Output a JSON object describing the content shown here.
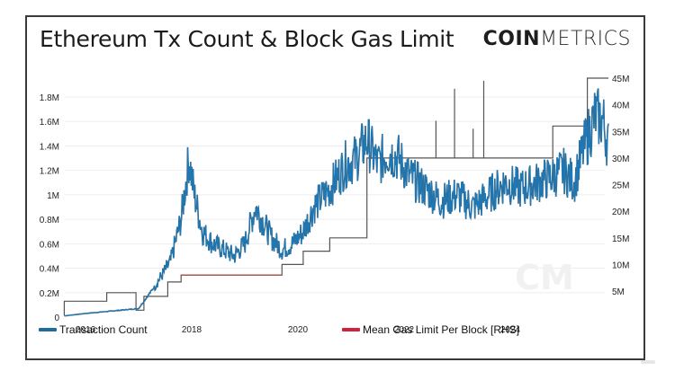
{
  "header": {
    "title": "Ethereum Tx Count & Block Gas Limit",
    "brand_bold": "COIN",
    "brand_light": "METRICS"
  },
  "legend": {
    "items": [
      {
        "label": "Transaction Count",
        "color": "#1f6e99"
      },
      {
        "label": "Mean Gas Limit Per Block [RHS]",
        "color": "#d0223a"
      }
    ]
  },
  "colors": {
    "tx_line": "#1f77b4",
    "tx_line_dark": "#23516b",
    "gas_line": "#555555",
    "gas_line_red": "#c0392b",
    "grid": "#eeeeee",
    "frame": "#3a3a3a"
  },
  "chart_data": {
    "type": "line",
    "title": "Ethereum Tx Count & Block Gas Limit",
    "xlabel": "",
    "ylabel": "Transaction Count",
    "ylabel_right": "Mean Gas Limit Per Block",
    "x_ticks": [
      "2016",
      "2018",
      "2020",
      "2022",
      "2024"
    ],
    "y_ticks_left": [
      "0",
      "0.2M",
      "0.4M",
      "0.6M",
      "0.8M",
      "1M",
      "1.2M",
      "1.4M",
      "1.6M",
      "1.8M"
    ],
    "y_ticks_right": [
      "5M",
      "10M",
      "15M",
      "20M",
      "25M",
      "30M",
      "35M",
      "40M",
      "45M"
    ],
    "ylim_left": [
      0,
      1800000
    ],
    "ylim_right": [
      0,
      45000000
    ],
    "grid": true,
    "legend_position": "bottom",
    "series": [
      {
        "name": "Transaction Count",
        "axis": "left",
        "x": [
          2015.6,
          2016.0,
          2016.5,
          2017.0,
          2017.3,
          2017.6,
          2017.8,
          2017.95,
          2018.05,
          2018.2,
          2018.4,
          2018.6,
          2018.8,
          2019.0,
          2019.2,
          2019.5,
          2019.7,
          2019.9,
          2020.1,
          2020.3,
          2020.6,
          2020.9,
          2021.1,
          2021.3,
          2021.5,
          2021.7,
          2021.9,
          2022.1,
          2022.4,
          2022.7,
          2023.0,
          2023.3,
          2023.6,
          2023.9,
          2024.2,
          2024.5,
          2024.8,
          2025.0,
          2025.2,
          2025.4,
          2025.6,
          2025.75,
          2025.85
        ],
        "values": [
          10000,
          30000,
          50000,
          70000,
          250000,
          450000,
          800000,
          1300000,
          1000000,
          700000,
          600000,
          550000,
          500000,
          600000,
          900000,
          650000,
          550000,
          600000,
          700000,
          900000,
          1050000,
          1250000,
          1300000,
          1450000,
          1250000,
          1350000,
          1300000,
          1150000,
          1050000,
          950000,
          1000000,
          900000,
          1000000,
          1100000,
          1050000,
          1100000,
          1150000,
          1200000,
          1100000,
          1400000,
          1650000,
          1600000,
          1400000
        ]
      },
      {
        "name": "Mean Gas Limit Per Block [RHS]",
        "axis": "right",
        "x": [
          2015.6,
          2015.6,
          2016.4,
          2016.4,
          2016.95,
          2016.95,
          2017.1,
          2017.1,
          2017.55,
          2017.55,
          2017.8,
          2017.8,
          2019.7,
          2019.7,
          2020.1,
          2020.1,
          2020.6,
          2020.6,
          2021.3,
          2021.3,
          2021.6,
          2021.6,
          2024.8,
          2024.8,
          2025.45,
          2025.45,
          2025.85
        ],
        "values": [
          400000,
          3100000,
          3100000,
          4700000,
          4700000,
          1400000,
          1400000,
          4000000,
          4000000,
          6700000,
          6700000,
          8000000,
          8000000,
          10000000,
          10000000,
          12500000,
          12500000,
          15000000,
          15000000,
          30000000,
          30000000,
          30000000,
          30000000,
          36000000,
          36000000,
          45000000,
          45000000
        ]
      }
    ],
    "spikes_gas_limit": [
      {
        "x": 2022.95,
        "value": 43000000
      },
      {
        "x": 2023.5,
        "value": 44500000
      },
      {
        "x": 2022.6,
        "value": 37000000
      },
      {
        "x": 2023.3,
        "value": 35500000
      }
    ],
    "watermark": "CM"
  }
}
